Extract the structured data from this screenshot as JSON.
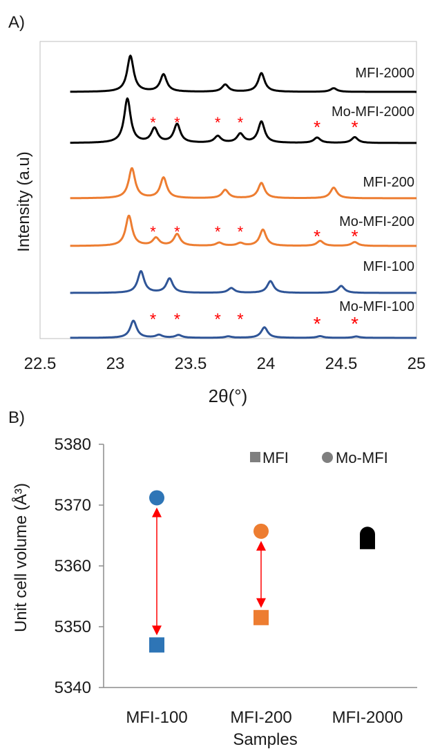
{
  "chart_data": [
    {
      "panel_label": "A)",
      "type": "line",
      "xlabel": "2θ(°)",
      "ylabel": "Intensity (a.u)",
      "xlim": [
        22.5,
        25
      ],
      "x_ticks": [
        "22.5",
        "23",
        "23.5",
        "24",
        "24.5",
        "25"
      ],
      "y_ticks_shown": false,
      "series": [
        {
          "name": "MFI-2000",
          "color": "#000000",
          "peaks": [
            [
              23.1,
              1.0
            ],
            [
              23.32,
              0.48
            ],
            [
              23.73,
              0.2
            ],
            [
              23.97,
              0.52
            ],
            [
              24.45,
              0.1
            ]
          ]
        },
        {
          "name": "Mo-MFI-2000",
          "color": "#000000",
          "peaks": [
            [
              23.08,
              1.0
            ],
            [
              23.26,
              0.32
            ],
            [
              23.41,
              0.42
            ],
            [
              23.68,
              0.15
            ],
            [
              23.83,
              0.2
            ],
            [
              23.97,
              0.48
            ],
            [
              24.34,
              0.12
            ],
            [
              24.59,
              0.13
            ]
          ]
        },
        {
          "name": "MFI-200",
          "color": "#ED7D31",
          "peaks": [
            [
              23.11,
              0.9
            ],
            [
              23.32,
              0.62
            ],
            [
              23.73,
              0.25
            ],
            [
              23.97,
              0.46
            ],
            [
              24.45,
              0.32
            ]
          ]
        },
        {
          "name": "Mo-MFI-200",
          "color": "#ED7D31",
          "peaks": [
            [
              23.09,
              0.78
            ],
            [
              23.27,
              0.2
            ],
            [
              23.41,
              0.3
            ],
            [
              23.69,
              0.08
            ],
            [
              23.83,
              0.07
            ],
            [
              23.98,
              0.42
            ],
            [
              24.36,
              0.13
            ],
            [
              24.59,
              0.1
            ]
          ]
        },
        {
          "name": "MFI-100",
          "color": "#2F5597",
          "peaks": [
            [
              23.17,
              0.68
            ],
            [
              23.36,
              0.45
            ],
            [
              23.77,
              0.15
            ],
            [
              24.03,
              0.37
            ],
            [
              24.5,
              0.22
            ]
          ]
        },
        {
          "name": "Mo-MFI-100",
          "color": "#2F5597",
          "peaks": [
            [
              23.12,
              0.62
            ],
            [
              23.29,
              0.1
            ],
            [
              23.42,
              0.1
            ],
            [
              23.75,
              0.05
            ],
            [
              23.99,
              0.38
            ],
            [
              24.36,
              0.06
            ],
            [
              24.6,
              0.05
            ]
          ]
        }
      ],
      "annotations": {
        "marker": "*",
        "color": "#FF0000",
        "positions_2theta": [
          23.25,
          23.41,
          23.68,
          23.83,
          24.34,
          24.59
        ]
      }
    },
    {
      "panel_label": "B)",
      "type": "scatter",
      "xlabel": "Samples",
      "ylabel": "Unit cell volume (Å³)",
      "ylim": [
        5340,
        5380
      ],
      "y_ticks": [
        5340,
        5350,
        5360,
        5370,
        5380
      ],
      "categories": [
        "MFI-100",
        "MFI-200",
        "MFI-2000"
      ],
      "legend": {
        "position": "top-right",
        "entries": [
          {
            "label": "MFI",
            "marker": "square"
          },
          {
            "label": "Mo-MFI",
            "marker": "circle"
          }
        ]
      },
      "series": [
        {
          "name": "MFI",
          "marker": "square",
          "values": [
            5347,
            5351.5,
            5364
          ]
        },
        {
          "name": "Mo-MFI",
          "marker": "circle",
          "values": [
            5371.2,
            5365.7,
            5365.2
          ]
        }
      ],
      "point_colors": [
        "#2E75B6",
        "#ED7D31",
        "#000000"
      ],
      "arrows": {
        "color": "#FF0000",
        "categories": [
          "MFI-100",
          "MFI-200"
        ],
        "style": "double-headed"
      }
    }
  ]
}
